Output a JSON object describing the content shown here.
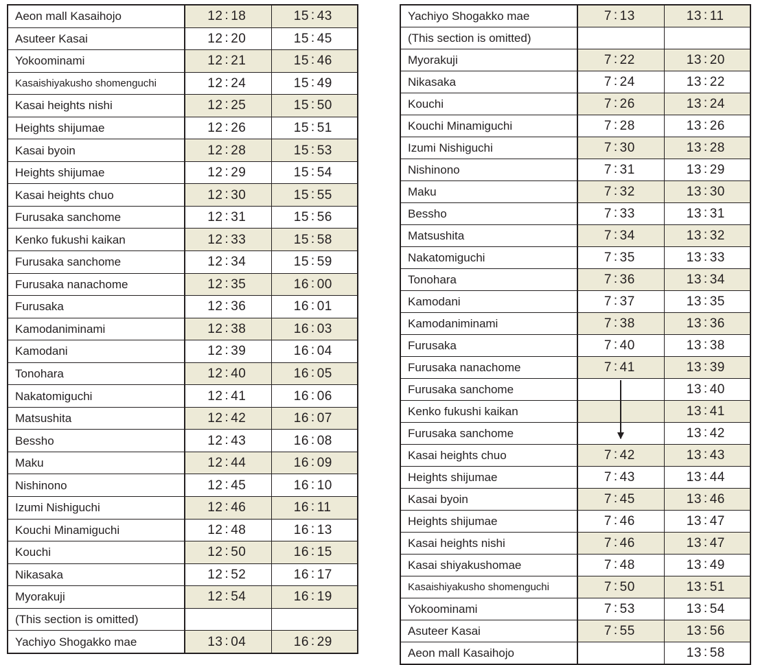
{
  "colors": {
    "border": "#231f20",
    "shade": "#edead7",
    "bg": "#ffffff",
    "text": "#231f20"
  },
  "tables": [
    {
      "id": "outbound",
      "columns": [
        "stop",
        "time1",
        "time2"
      ],
      "rows": [
        {
          "stop": "Aeon mall Kasaihojo",
          "t1": "12:18",
          "t2": "15:43",
          "shade": true
        },
        {
          "stop": "Asuteer Kasai",
          "t1": "12:20",
          "t2": "15:45"
        },
        {
          "stop": "Yokoominami",
          "t1": "12:21",
          "t2": "15:46",
          "shade": true
        },
        {
          "stop": "Kasaishiyakusho shomenguchi",
          "t1": "12:24",
          "t2": "15:49",
          "small": true
        },
        {
          "stop": "Kasai heights nishi",
          "t1": "12:25",
          "t2": "15:50",
          "shade": true
        },
        {
          "stop": "Heights shijumae",
          "t1": "12:26",
          "t2": "15:51"
        },
        {
          "stop": "Kasai byoin",
          "t1": "12:28",
          "t2": "15:53",
          "shade": true
        },
        {
          "stop": "Heights shijumae",
          "t1": "12:29",
          "t2": "15:54"
        },
        {
          "stop": "Kasai heights chuo",
          "t1": "12:30",
          "t2": "15:55",
          "shade": true
        },
        {
          "stop": "Furusaka sanchome",
          "t1": "12:31",
          "t2": "15:56"
        },
        {
          "stop": "Kenko fukushi kaikan",
          "t1": "12:33",
          "t2": "15:58",
          "shade": true
        },
        {
          "stop": "Furusaka sanchome",
          "t1": "12:34",
          "t2": "15:59"
        },
        {
          "stop": "Furusaka nanachome",
          "t1": "12:35",
          "t2": "16:00",
          "shade": true
        },
        {
          "stop": "Furusaka",
          "t1": "12:36",
          "t2": "16:01"
        },
        {
          "stop": "Kamodaniminami",
          "t1": "12:38",
          "t2": "16:03",
          "shade": true
        },
        {
          "stop": "Kamodani",
          "t1": "12:39",
          "t2": "16:04"
        },
        {
          "stop": "Tonohara",
          "t1": "12:40",
          "t2": "16:05",
          "shade": true
        },
        {
          "stop": "Nakatomiguchi",
          "t1": "12:41",
          "t2": "16:06"
        },
        {
          "stop": "Matsushita",
          "t1": "12:42",
          "t2": "16:07",
          "shade": true
        },
        {
          "stop": "Bessho",
          "t1": "12:43",
          "t2": "16:08"
        },
        {
          "stop": "Maku",
          "t1": "12:44",
          "t2": "16:09",
          "shade": true
        },
        {
          "stop": "Nishinono",
          "t1": "12:45",
          "t2": "16:10"
        },
        {
          "stop": "Izumi Nishiguchi",
          "t1": "12:46",
          "t2": "16:11",
          "shade": true
        },
        {
          "stop": "Kouchi Minamiguchi",
          "t1": "12:48",
          "t2": "16:13"
        },
        {
          "stop": "Kouchi",
          "t1": "12:50",
          "t2": "16:15",
          "shade": true
        },
        {
          "stop": "Nikasaka",
          "t1": "12:52",
          "t2": "16:17"
        },
        {
          "stop": "Myorakuji",
          "t1": "12:54",
          "t2": "16:19",
          "shade": true
        },
        {
          "stop": "(This section is omitted)",
          "t1": "",
          "t2": ""
        },
        {
          "stop": "Yachiyo Shogakko mae",
          "t1": "13:04",
          "t2": "16:29",
          "shade": true
        }
      ]
    },
    {
      "id": "inbound",
      "columns": [
        "stop",
        "time1",
        "time2"
      ],
      "arrow": {
        "col": "t1",
        "from_row": 16,
        "to_row": 19
      },
      "rows": [
        {
          "stop": "Yachiyo Shogakko mae",
          "t1": "7:13",
          "t2": "13:11",
          "shade": true
        },
        {
          "stop": "(This section is omitted)",
          "t1": "",
          "t2": ""
        },
        {
          "stop": "Myorakuji",
          "t1": "7:22",
          "t2": "13:20",
          "shade": true
        },
        {
          "stop": "Nikasaka",
          "t1": "7:24",
          "t2": "13:22"
        },
        {
          "stop": "Kouchi",
          "t1": "7:26",
          "t2": "13:24",
          "shade": true
        },
        {
          "stop": "Kouchi Minamiguchi",
          "t1": "7:28",
          "t2": "13:26"
        },
        {
          "stop": "Izumi Nishiguchi",
          "t1": "7:30",
          "t2": "13:28",
          "shade": true
        },
        {
          "stop": "Nishinono",
          "t1": "7:31",
          "t2": "13:29"
        },
        {
          "stop": "Maku",
          "t1": "7:32",
          "t2": "13:30",
          "shade": true
        },
        {
          "stop": "Bessho",
          "t1": "7:33",
          "t2": "13:31"
        },
        {
          "stop": "Matsushita",
          "t1": "7:34",
          "t2": "13:32",
          "shade": true
        },
        {
          "stop": "Nakatomiguchi",
          "t1": "7:35",
          "t2": "13:33"
        },
        {
          "stop": "Tonohara",
          "t1": "7:36",
          "t2": "13:34",
          "shade": true
        },
        {
          "stop": "Kamodani",
          "t1": "7:37",
          "t2": "13:35"
        },
        {
          "stop": "Kamodaniminami",
          "t1": "7:38",
          "t2": "13:36",
          "shade": true
        },
        {
          "stop": "Furusaka",
          "t1": "7:40",
          "t2": "13:38"
        },
        {
          "stop": "Furusaka nanachome",
          "t1": "7:41",
          "t2": "13:39",
          "shade": true
        },
        {
          "stop": "Furusaka sanchome",
          "t1": "",
          "t2": "13:40"
        },
        {
          "stop": "Kenko fukushi kaikan",
          "t1": "",
          "t2": "13:41",
          "shade": true
        },
        {
          "stop": "Furusaka sanchome",
          "t1": "",
          "t2": "13:42"
        },
        {
          "stop": "Kasai heights chuo",
          "t1": "7:42",
          "t2": "13:43",
          "shade": true
        },
        {
          "stop": "Heights shijumae",
          "t1": "7:43",
          "t2": "13:44"
        },
        {
          "stop": "Kasai byoin",
          "t1": "7:45",
          "t2": "13:46",
          "shade": true
        },
        {
          "stop": "Heights shijumae",
          "t1": "7:46",
          "t2": "13:47"
        },
        {
          "stop": "Kasai heights nishi",
          "t1": "7:46",
          "t2": "13:47",
          "shade": true
        },
        {
          "stop": "Kasai shiyakushomae",
          "t1": "7:48",
          "t2": "13:49"
        },
        {
          "stop": "Kasaishiyakusho shomenguchi",
          "t1": "7:50",
          "t2": "13:51",
          "shade": true,
          "small": true
        },
        {
          "stop": "Yokoominami",
          "t1": "7:53",
          "t2": "13:54"
        },
        {
          "stop": "Asuteer Kasai",
          "t1": "7:55",
          "t2": "13:56",
          "shade": true
        },
        {
          "stop": "Aeon mall Kasaihojo",
          "t1": "",
          "t2": "13:58"
        }
      ]
    }
  ]
}
